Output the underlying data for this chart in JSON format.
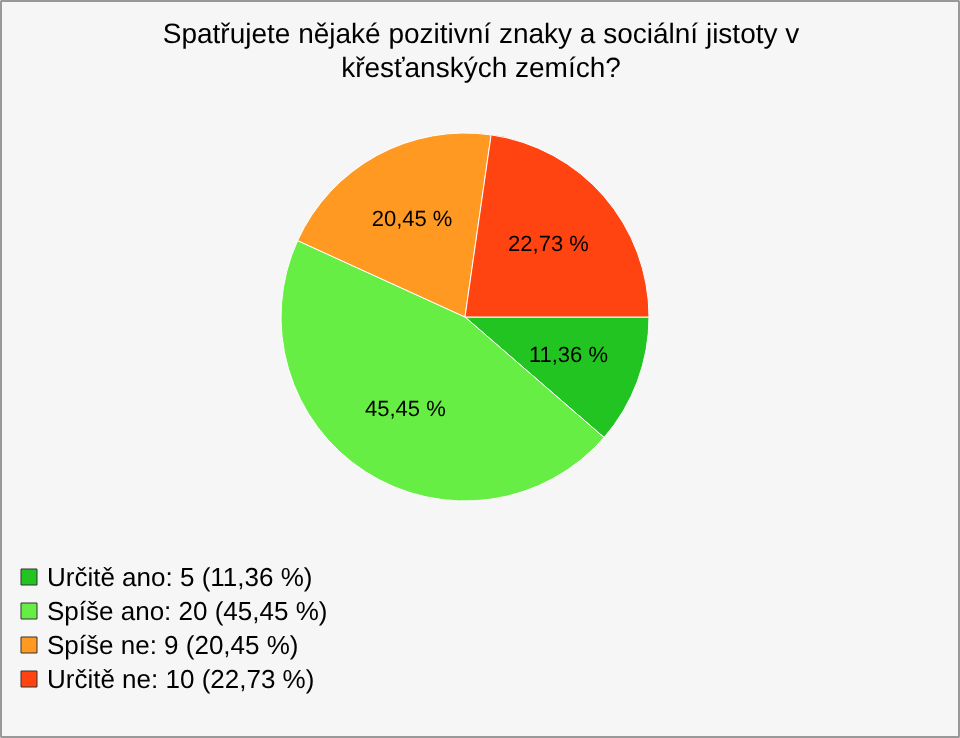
{
  "chart_data": {
    "type": "pie",
    "title": "Spatřujete nějaké pozitivní znaky a sociální jistoty v křesťanských zemích?",
    "categories": [
      "Určitě ano: 5 (11,36 %)",
      "Spíše ano: 20 (45,45 %)",
      "Spíše ne: 9 (20,45 %)",
      "Určitě ne: 10 (22,73 %)"
    ],
    "values": [
      11.36,
      45.45,
      20.45,
      22.73
    ],
    "value_labels": [
      "11,36 %",
      "45,45 %",
      "20,45 %",
      "22,73 %"
    ],
    "colors": [
      "#22c422",
      "#66ee44",
      "#ff9922",
      "#ff4411"
    ],
    "legend": "bottom left"
  }
}
